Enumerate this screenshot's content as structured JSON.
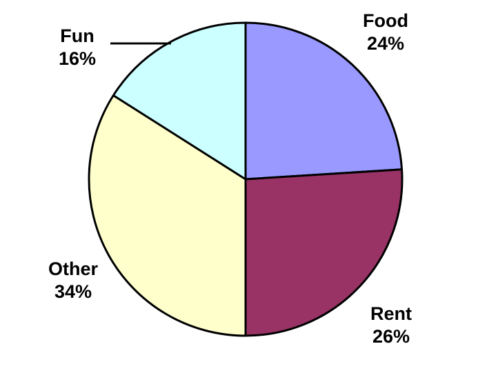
{
  "chart_data": {
    "type": "pie",
    "title": "",
    "slices": [
      {
        "label": "Food",
        "value": 24,
        "pct_label": "24%",
        "color": "#9999ff"
      },
      {
        "label": "Rent",
        "value": 26,
        "pct_label": "26%",
        "color": "#993366"
      },
      {
        "label": "Other",
        "value": 34,
        "pct_label": "34%",
        "color": "#ffffcc"
      },
      {
        "label": "Fun",
        "value": 16,
        "pct_label": "16%",
        "color": "#ccffff"
      }
    ],
    "start_angle_deg": 0,
    "direction": "clockwise",
    "legend": "none",
    "outline_color": "#000000"
  }
}
